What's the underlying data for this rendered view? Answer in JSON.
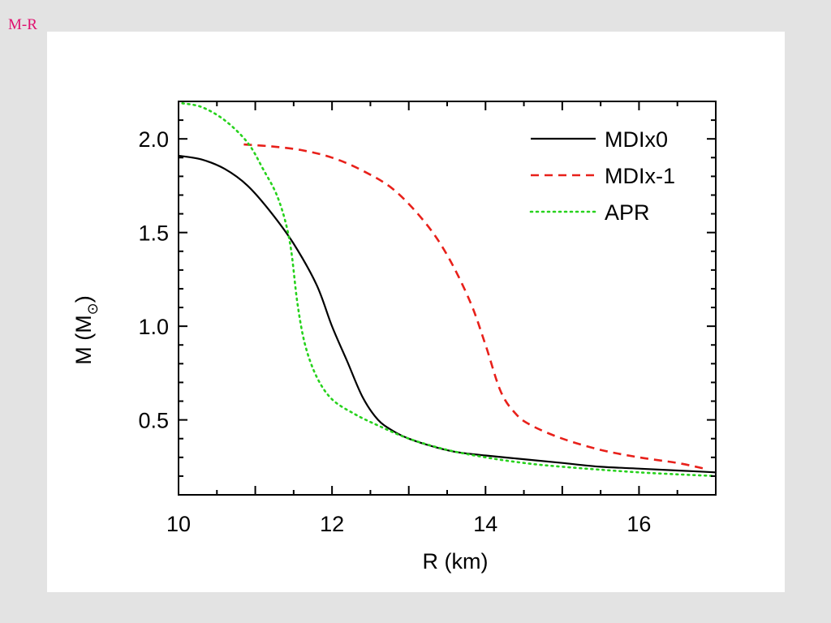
{
  "page": {
    "title": "M-R"
  },
  "chart_data": {
    "type": "line",
    "xlabel": "R (km)",
    "ylabel": "M (M⊙)",
    "xlim": [
      10,
      17
    ],
    "ylim": [
      0.1,
      2.2
    ],
    "x_ticks": [
      10,
      12,
      14,
      16
    ],
    "x_tick_labels": [
      "10",
      "12",
      "14",
      "16"
    ],
    "y_ticks": [
      0.5,
      1.0,
      1.5,
      2.0
    ],
    "y_tick_labels": [
      "0.5",
      "1.0",
      "1.5",
      "2.0"
    ],
    "grid": false,
    "legend_position": "top-right",
    "series": [
      {
        "name": "MDIx0",
        "color": "#000000",
        "style": "solid",
        "x": [
          10.0,
          10.3,
          10.6,
          10.9,
          11.2,
          11.5,
          11.8,
          12.0,
          12.2,
          12.4,
          12.6,
          12.8,
          13.0,
          13.3,
          13.6,
          14.0,
          14.5,
          15.0,
          15.5,
          16.0,
          16.5,
          17.0
        ],
        "y": [
          1.91,
          1.89,
          1.84,
          1.75,
          1.61,
          1.44,
          1.22,
          1.0,
          0.81,
          0.62,
          0.5,
          0.44,
          0.4,
          0.36,
          0.33,
          0.31,
          0.29,
          0.27,
          0.25,
          0.24,
          0.23,
          0.22
        ]
      },
      {
        "name": "MDIx-1",
        "color": "#e8201a",
        "style": "dashed",
        "x": [
          10.85,
          11.2,
          11.6,
          12.0,
          12.4,
          12.8,
          13.2,
          13.5,
          13.8,
          14.0,
          14.2,
          14.4,
          14.6,
          15.0,
          15.5,
          16.0,
          16.5,
          16.85
        ],
        "y": [
          1.97,
          1.96,
          1.94,
          1.9,
          1.83,
          1.73,
          1.56,
          1.38,
          1.13,
          0.9,
          0.65,
          0.53,
          0.47,
          0.4,
          0.34,
          0.3,
          0.27,
          0.24
        ]
      },
      {
        "name": "APR",
        "color": "#27d21d",
        "style": "dotted",
        "x": [
          10.05,
          10.3,
          10.6,
          10.9,
          11.1,
          11.3,
          11.45,
          11.55,
          11.65,
          11.8,
          12.0,
          12.3,
          12.6,
          13.0,
          13.5,
          14.0,
          14.5,
          15.0,
          16.0,
          17.0
        ],
        "y": [
          2.19,
          2.17,
          2.1,
          1.98,
          1.84,
          1.68,
          1.45,
          1.12,
          0.9,
          0.73,
          0.61,
          0.53,
          0.47,
          0.4,
          0.34,
          0.3,
          0.27,
          0.25,
          0.22,
          0.2
        ]
      }
    ]
  }
}
